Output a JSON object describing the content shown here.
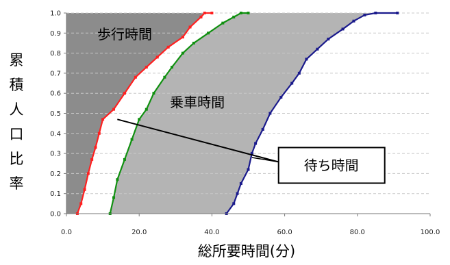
{
  "chart_data": {
    "type": "line",
    "xlabel": "総所要時間(分)",
    "ylabel": "累積人口比率",
    "xlim": [
      0,
      100
    ],
    "ylim": [
      0,
      1
    ],
    "x_ticks": [
      0,
      20,
      40,
      60,
      80,
      100
    ],
    "x_tick_labels": [
      "0.0",
      "20.0",
      "40.0",
      "60.0",
      "80.0",
      "100.0"
    ],
    "y_ticks": [
      0,
      0.1,
      0.2,
      0.3,
      0.4,
      0.5,
      0.6,
      0.7,
      0.8,
      0.9,
      1.0
    ],
    "y_tick_labels": [
      "0.0",
      "0.1",
      "0.2",
      "0.3",
      "0.4",
      "0.5",
      "0.6",
      "0.7",
      "0.8",
      "0.9",
      "1.0"
    ],
    "grid": "horizontal dashed",
    "legend": "none",
    "series": [
      {
        "color": "#ff2020",
        "points": [
          [
            3,
            0
          ],
          [
            4,
            0.05
          ],
          [
            5,
            0.12
          ],
          [
            6,
            0.2
          ],
          [
            7,
            0.27
          ],
          [
            8,
            0.33
          ],
          [
            9,
            0.4
          ],
          [
            10,
            0.47
          ],
          [
            13,
            0.52
          ],
          [
            16,
            0.6
          ],
          [
            19,
            0.68
          ],
          [
            22,
            0.73
          ],
          [
            25,
            0.78
          ],
          [
            28,
            0.83
          ],
          [
            32,
            0.88
          ],
          [
            34,
            0.93
          ],
          [
            37,
            0.98
          ],
          [
            38,
            1.0
          ],
          [
            40,
            1.0
          ]
        ]
      },
      {
        "color": "#109010",
        "points": [
          [
            12,
            0
          ],
          [
            13,
            0.08
          ],
          [
            14,
            0.17
          ],
          [
            16,
            0.27
          ],
          [
            18,
            0.37
          ],
          [
            20,
            0.47
          ],
          [
            22,
            0.52
          ],
          [
            24,
            0.6
          ],
          [
            27,
            0.68
          ],
          [
            29,
            0.73
          ],
          [
            32,
            0.8
          ],
          [
            35,
            0.85
          ],
          [
            39,
            0.9
          ],
          [
            43,
            0.95
          ],
          [
            46,
            0.98
          ],
          [
            48,
            1.0
          ],
          [
            50,
            1.0
          ]
        ]
      },
      {
        "color": "#1a1a8c",
        "points": [
          [
            44,
            0
          ],
          [
            46,
            0.05
          ],
          [
            47,
            0.1
          ],
          [
            48,
            0.15
          ],
          [
            50,
            0.22
          ],
          [
            51,
            0.3
          ],
          [
            52,
            0.35
          ],
          [
            54,
            0.42
          ],
          [
            56,
            0.5
          ],
          [
            59,
            0.58
          ],
          [
            62,
            0.65
          ],
          [
            64,
            0.7
          ],
          [
            66,
            0.77
          ],
          [
            69,
            0.82
          ],
          [
            72,
            0.87
          ],
          [
            76,
            0.92
          ],
          [
            79,
            0.96
          ],
          [
            82,
            0.99
          ],
          [
            85,
            1.0
          ],
          [
            91,
            1.0
          ]
        ]
      }
    ],
    "annotations": [
      {
        "text": "歩行時間",
        "x": 16,
        "y": 0.87
      },
      {
        "text": "乗車時間",
        "x": 36,
        "y": 0.53
      },
      {
        "text": "待ち時間",
        "callout_to": [
          [
            14,
            0.47
          ],
          [
            51,
            0.28
          ]
        ],
        "box_at": [
          70,
          0.21
        ]
      }
    ],
    "colors": {
      "walk_region": "#8c8c8c",
      "ride_region": "#b4b4b4",
      "wait_region": "#ffffff",
      "plot_background": "#ffffff"
    }
  }
}
